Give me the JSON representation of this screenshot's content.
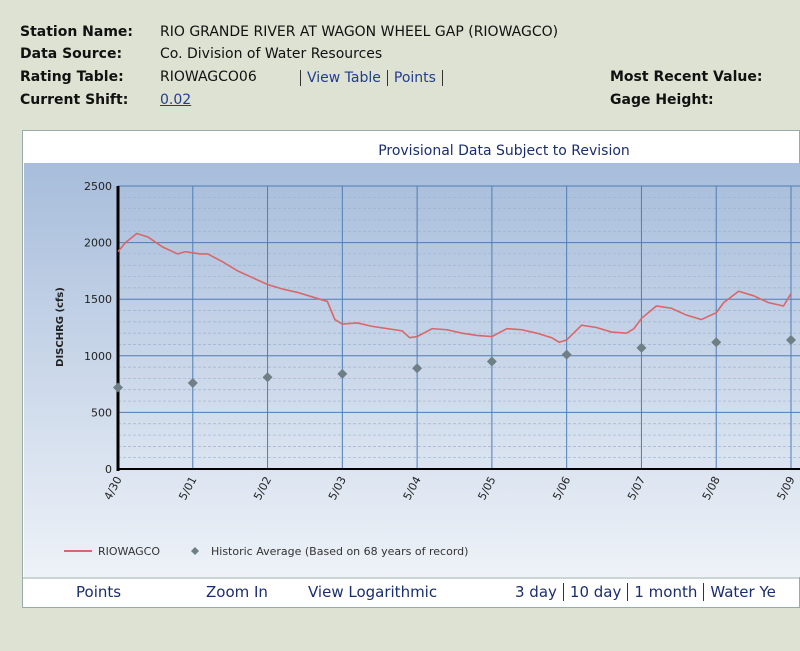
{
  "header": {
    "fields": [
      {
        "label": "Station Name:",
        "value": "RIO GRANDE RIVER AT WAGON WHEEL GAP (RIOWAGCO)"
      },
      {
        "label": "Data Source:",
        "value": "Co. Division of Water Resources"
      },
      {
        "label": "Rating Table:",
        "value": "RIOWAGCO06"
      },
      {
        "label": "Current Shift:",
        "value": "0.02"
      }
    ],
    "rating_links": [
      "View Table",
      "Points"
    ],
    "right_fields": [
      "Most Recent Value:",
      "Gage Height:"
    ]
  },
  "chart_data": {
    "type": "line",
    "title": "Provisional Data Subject to Revision",
    "y_label": "DISCHRG (cfs)",
    "x": [
      0,
      0.1,
      0.25,
      0.4,
      0.6,
      0.8,
      0.9,
      1.1,
      1.2,
      1.4,
      1.6,
      1.8,
      2.0,
      2.2,
      2.4,
      2.6,
      2.8,
      2.85,
      2.9,
      3.0,
      3.2,
      3.4,
      3.6,
      3.8,
      3.9,
      4.0,
      4.2,
      4.4,
      4.6,
      4.8,
      5.0,
      5.2,
      5.4,
      5.6,
      5.8,
      5.9,
      6.0,
      6.2,
      6.4,
      6.6,
      6.8,
      6.9,
      7.0,
      7.2,
      7.4,
      7.6,
      7.8,
      8.0,
      8.1,
      8.3,
      8.5,
      8.7,
      8.9,
      9.0
    ],
    "series": [
      {
        "name": "RIOWAGCO",
        "color": "#d9676a",
        "values": [
          1920,
          2000,
          2080,
          2050,
          1960,
          1900,
          1920,
          1900,
          1900,
          1830,
          1750,
          1690,
          1630,
          1590,
          1560,
          1520,
          1480,
          1400,
          1320,
          1280,
          1290,
          1260,
          1240,
          1220,
          1160,
          1170,
          1240,
          1230,
          1200,
          1180,
          1170,
          1240,
          1230,
          1200,
          1160,
          1120,
          1140,
          1270,
          1250,
          1210,
          1200,
          1240,
          1330,
          1440,
          1420,
          1360,
          1320,
          1380,
          1470,
          1570,
          1530,
          1470,
          1440,
          1550
        ]
      }
    ],
    "historic": {
      "name": "Historic Average (Based on 68 years of record)",
      "color": "#6f7f86",
      "x": [
        0,
        1,
        2,
        3,
        4,
        5,
        6,
        7,
        8,
        9
      ],
      "values": [
        720,
        760,
        810,
        840,
        890,
        950,
        1010,
        1070,
        1120,
        1140
      ]
    },
    "xlim": [
      0,
      9
    ],
    "xticks": [
      {
        "value": 0,
        "label": "4/30"
      },
      {
        "value": 1,
        "label": "5/01"
      },
      {
        "value": 2,
        "label": "5/02"
      },
      {
        "value": 3,
        "label": "5/03"
      },
      {
        "value": 4,
        "label": "5/04"
      },
      {
        "value": 5,
        "label": "5/05"
      },
      {
        "value": 6,
        "label": "5/06"
      },
      {
        "value": 7,
        "label": "5/07"
      },
      {
        "value": 8,
        "label": "5/08"
      },
      {
        "value": 9,
        "label": "5/09"
      }
    ],
    "ylim": [
      0,
      2500
    ],
    "yticks": [
      0,
      500,
      1000,
      1500,
      2000,
      2500
    ],
    "minor_yticks": [
      100,
      200,
      300,
      400,
      600,
      700,
      800,
      900,
      1100,
      1200,
      1300,
      1400,
      1600,
      1700,
      1800,
      1900,
      2100,
      2200,
      2300,
      2400
    ],
    "grid": true
  },
  "footer": {
    "links": [
      "Points",
      "Zoom In",
      "View Logarithmic"
    ],
    "ranges": [
      "3 day",
      "10 day",
      "1 month",
      "Water Ye"
    ]
  }
}
